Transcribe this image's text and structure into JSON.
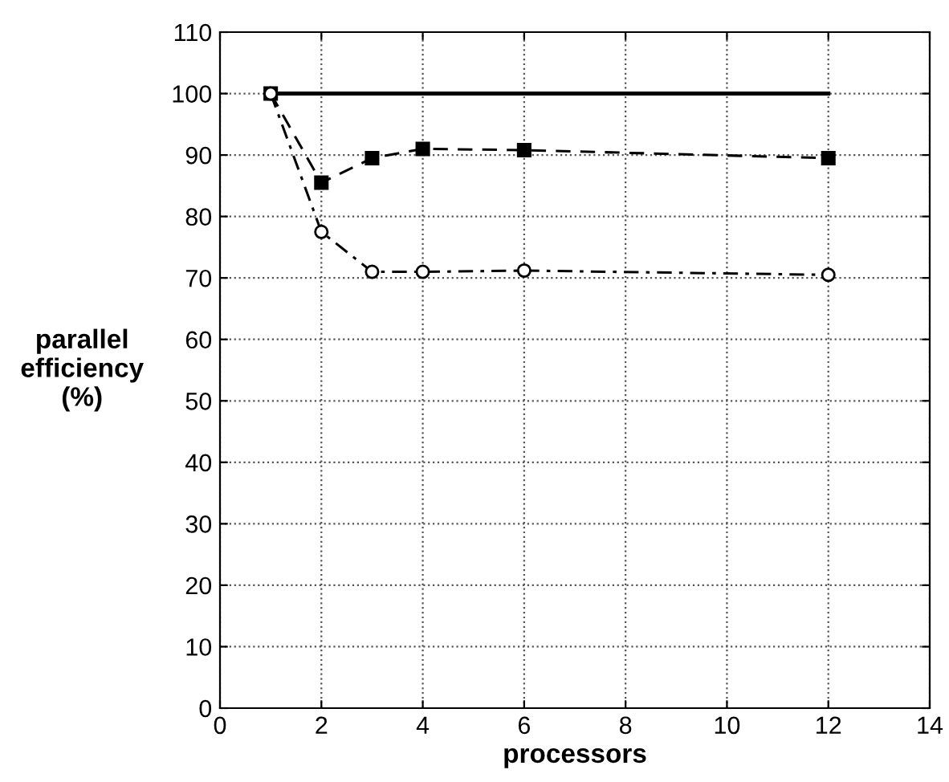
{
  "chart_data": {
    "type": "line",
    "xlabel": "processors",
    "ylabel": "parallel\nefficiency\n(%)",
    "x": [
      1,
      2,
      3,
      4,
      6,
      12
    ],
    "series": [
      {
        "color": "#000000",
        "values": [
          100,
          100,
          100,
          100,
          100,
          100
        ],
        "line_style": "solid",
        "marker": "none"
      },
      {
        "color": "#000000",
        "values": [
          100,
          85.5,
          89.5,
          91,
          90.8,
          89.5
        ],
        "line_style": "dashed",
        "marker": "square"
      },
      {
        "color": "#000000",
        "values": [
          100,
          77.5,
          71,
          71,
          71.2,
          70.5
        ],
        "line_style": "dashdot",
        "marker": "circle"
      }
    ],
    "xlim": [
      0,
      14
    ],
    "xticks": [
      0,
      2,
      4,
      6,
      8,
      10,
      12,
      14
    ],
    "ylim": [
      0,
      110
    ],
    "yticks": [
      0,
      10,
      20,
      30,
      40,
      50,
      60,
      70,
      80,
      90,
      100,
      110
    ],
    "grid": true,
    "legend": false
  }
}
